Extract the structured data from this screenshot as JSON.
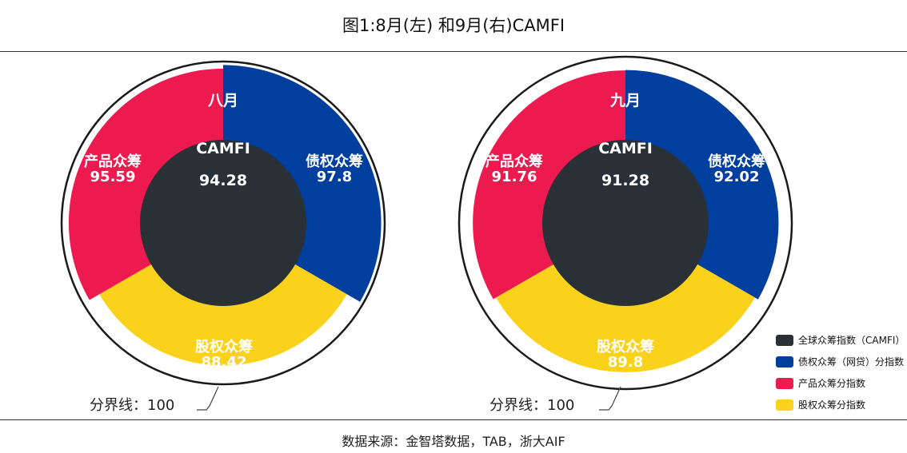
{
  "title": "图1:8月(左) 和9月(右)CAMFI",
  "source": "数据来源：金智塔数据，TAB，浙大AIF",
  "colors": {
    "center": "#2a3136",
    "debt": "#003f9e",
    "product": "#ec1a4e",
    "equity": "#fbd21b"
  },
  "legend": [
    {
      "label": "全球众筹指数（CAMFI）",
      "color_key": "center"
    },
    {
      "label": "债权众筹（网贷）分指数",
      "color_key": "debt"
    },
    {
      "label": "产品众筹分指数",
      "color_key": "product"
    },
    {
      "label": "股权众筹分指数",
      "color_key": "equity"
    }
  ],
  "chart_data": [
    {
      "type": "pie",
      "center_month": "八月",
      "center_name": "CAMFI",
      "center_value": "94.28",
      "boundary_label": "分界线：100",
      "boundary_value": 100,
      "segments": [
        {
          "name": "债权众筹",
          "value": 97.8,
          "color_key": "debt"
        },
        {
          "name": "股权众筹",
          "value": 88.42,
          "color_key": "equity"
        },
        {
          "name": "产品众筹",
          "value": 95.59,
          "color_key": "product"
        }
      ]
    },
    {
      "type": "pie",
      "center_month": "九月",
      "center_name": "CAMFI",
      "center_value": "91.28",
      "boundary_label": "分界线：100",
      "boundary_value": 100,
      "segments": [
        {
          "name": "债权众筹",
          "value": 92.02,
          "color_key": "debt"
        },
        {
          "name": "股权众筹",
          "value": 89.8,
          "color_key": "equity"
        },
        {
          "name": "产品众筹",
          "value": 91.76,
          "color_key": "product"
        }
      ]
    }
  ]
}
